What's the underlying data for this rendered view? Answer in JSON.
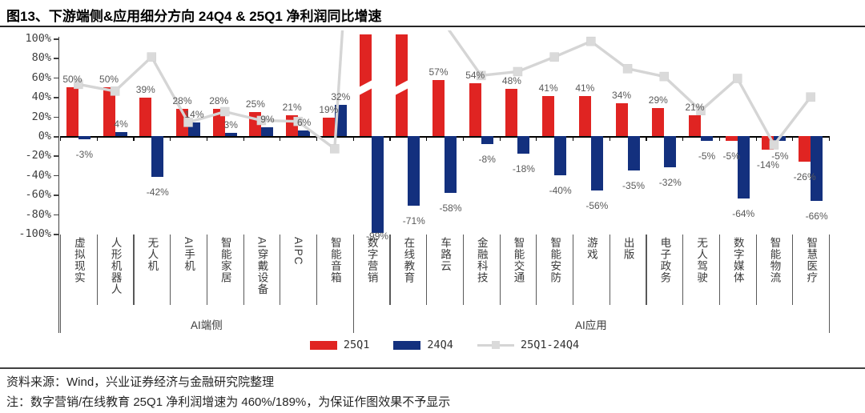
{
  "title": "图13、下游端侧&应用细分方向 24Q4 & 25Q1 净利润同比增速",
  "chart_data": {
    "type": "bar",
    "title": "下游端侧&应用细分方向 24Q4 & 25Q1 净利润同比增速",
    "ylim": [
      -100,
      100
    ],
    "y_tick_step": 20,
    "y_tick_format": "percent",
    "grid": false,
    "legend_position": "bottom",
    "categories": [
      "虚拟现实",
      "人形机器人",
      "无人机",
      "AI手机",
      "智能家居",
      "AI穿戴设备",
      "AIPC",
      "智能音箱",
      "数字营销",
      "在线教育",
      "车路云",
      "金融科技",
      "智能交通",
      "智能安防",
      "游戏",
      "出版",
      "电子政务",
      "无人驾驶",
      "数字媒体",
      "智能物流",
      "智慧医疗"
    ],
    "groups": [
      {
        "label": "AI端侧",
        "start": 0,
        "end": 7
      },
      {
        "label": "AI应用",
        "start": 8,
        "end": 20
      }
    ],
    "series": [
      {
        "name": "25Q1",
        "type": "bar",
        "color": "#e02422",
        "values": [
          50,
          50,
          39,
          28,
          28,
          25,
          21,
          19,
          460,
          189,
          57,
          54,
          48,
          41,
          41,
          34,
          29,
          21,
          -5,
          -14,
          -26
        ],
        "clipped_indices": [
          8,
          9
        ],
        "clipped_note": "数字营销/在线教育 25Q1 为 460%/189%，超出坐标轴范围，柱形截断且不显示数据标签"
      },
      {
        "name": "24Q4",
        "type": "bar",
        "color": "#13307e",
        "values": [
          -3,
          4,
          -42,
          14,
          3,
          9,
          6,
          32,
          -99,
          -71,
          -58,
          -8,
          -18,
          -40,
          -56,
          -35,
          -32,
          -5,
          -64,
          -5,
          -66
        ]
      },
      {
        "name": "25Q1-24Q4",
        "type": "line",
        "color": "#d5d5d5",
        "marker": "square",
        "marker_color": "#dadada",
        "derived": "25Q1 minus 24Q4",
        "values": [
          53,
          46,
          81,
          14,
          25,
          16,
          15,
          -13,
          559,
          260,
          115,
          62,
          66,
          81,
          97,
          69,
          61,
          26,
          59,
          -9,
          40
        ]
      }
    ]
  },
  "legend": {
    "items": [
      {
        "label": "25Q1",
        "color": "#e02422",
        "shape": "bar"
      },
      {
        "label": "24Q4",
        "color": "#13307e",
        "shape": "bar"
      },
      {
        "label": "25Q1-24Q4",
        "color": "#d5d5d5",
        "shape": "line-marker"
      }
    ]
  },
  "footer": {
    "source": "资料来源：Wind，兴业证券经济与金融研究院整理",
    "note": "注：数字营销/在线教育 25Q1 净利润增速为 460%/189%，为保证作图效果不予显示"
  }
}
